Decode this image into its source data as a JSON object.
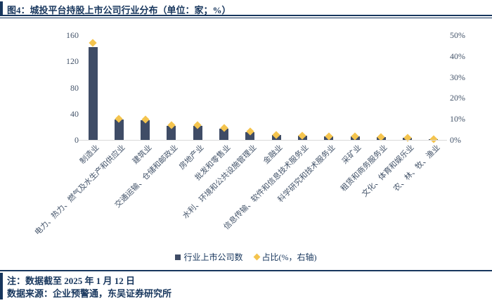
{
  "header": {
    "title": "图4：城投平台持股上市公司行业分布（单位：家；%）"
  },
  "chart_data": {
    "type": "bar",
    "title": "城投平台持股上市公司行业分布",
    "unit": "家；%",
    "grid": false,
    "legend_position": "bottom",
    "categories": [
      "制造业",
      "电力、热力、燃气及水生产和供应业",
      "建筑业",
      "交通运输、仓储和邮政业",
      "房地产业",
      "批发和零售业",
      "水利、环境和公共设施管理业",
      "金融业",
      "信息传输、软件和信息技术服务业",
      "科学研究和技术服务业",
      "采矿业",
      "租赁和商务服务业",
      "文化、体育和娱乐业",
      "农、林、牧、渔业"
    ],
    "series": [
      {
        "name": "行业上市公司数",
        "type": "bar",
        "axis": "left",
        "values": [
          142,
          31,
          30,
          22,
          21,
          17,
          12,
          7,
          6,
          5,
          5,
          4,
          3,
          1
        ]
      },
      {
        "name": "占比(%，右轴)",
        "type": "scatter",
        "marker": "diamond",
        "axis": "right",
        "values": [
          46.4,
          10.1,
          9.8,
          7.2,
          6.9,
          5.6,
          3.9,
          2.3,
          2.0,
          1.6,
          1.6,
          1.3,
          1.0,
          0.3
        ]
      }
    ],
    "left_axis": {
      "min": 0,
      "max": 160,
      "ticks": [
        "0",
        "40",
        "80",
        "120",
        "160"
      ]
    },
    "right_axis": {
      "min": 0,
      "max": 50,
      "ticks": [
        "0%",
        "10%",
        "20%",
        "30%",
        "40%",
        "50%"
      ]
    },
    "legend": [
      {
        "label": "行业上市公司数",
        "marker": "square"
      },
      {
        "label": "占比(%，右轴)",
        "marker": "diamond"
      }
    ]
  },
  "footer": {
    "note": "注：数据截至 2025 年 1 月 12 日",
    "source": "数据来源：企业预警通，东吴证券研究所"
  },
  "colors": {
    "navy": "#17365d",
    "bar_fill": "#3f4c66",
    "marker_fill": "#f4c44e",
    "axis_text": "#44546a",
    "baseline": "#d9d9d9"
  }
}
